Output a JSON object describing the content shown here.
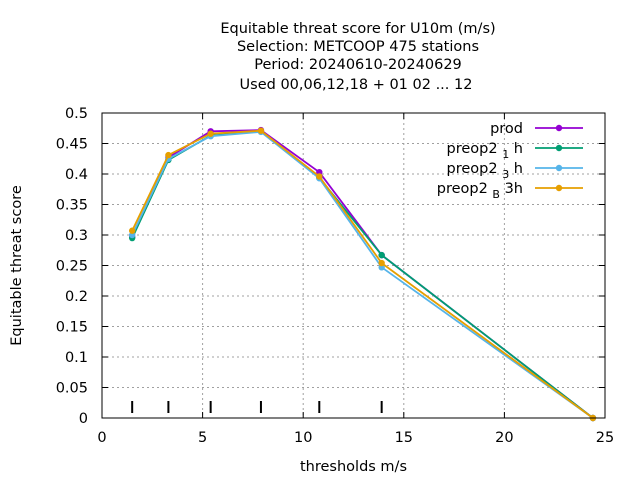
{
  "chart_data": {
    "type": "line",
    "title_lines": [
      "Equitable threat score  for U10m (m/s)",
      "Selection: METCOOP    475 stations",
      "Period: 20240610-20240629",
      "Used  00,06,12,18 + 01 02 ... 12"
    ],
    "xlabel": "thresholds m/s",
    "ylabel": "Equitable threat score",
    "xlim": [
      0,
      25
    ],
    "ylim": [
      0,
      0.5
    ],
    "xticks": [
      0,
      5,
      10,
      15,
      20,
      25
    ],
    "xtick_labels": [
      "0",
      "5",
      "10",
      "15",
      "20",
      "25"
    ],
    "yticks": [
      0,
      0.05,
      0.1,
      0.15,
      0.2,
      0.25,
      0.3,
      0.35,
      0.4,
      0.45,
      0.5
    ],
    "ytick_labels": [
      "0",
      "0.05",
      "0.1",
      "0.15",
      "0.2",
      "0.25",
      "0.3",
      "0.35",
      "0.4",
      "0.45",
      "0.5"
    ],
    "grid": true,
    "legend_position": "top-right",
    "threshold_markers": [
      1.5,
      3.3,
      5.4,
      7.9,
      10.8,
      13.9
    ],
    "x": [
      1.5,
      3.3,
      5.4,
      7.9,
      10.8,
      13.9,
      24.4
    ],
    "series": [
      {
        "name": "prod",
        "name_main": "prod",
        "name_sub": "",
        "name_rest": "",
        "color": "#9400d3",
        "values": [
          0.297,
          0.427,
          0.47,
          0.472,
          0.403,
          0.267,
          0.0
        ]
      },
      {
        "name": "preop2 1 h",
        "name_main": "preop2 ",
        "name_sub": "1",
        "name_rest": " h",
        "color": "#009e73",
        "values": [
          0.295,
          0.423,
          0.463,
          0.47,
          0.394,
          0.267,
          0.0
        ]
      },
      {
        "name": "preop2 3 h",
        "name_main": "preop2 ",
        "name_sub": "3",
        "name_rest": " h",
        "color": "#56b4e9",
        "values": [
          0.3,
          0.425,
          0.462,
          0.469,
          0.393,
          0.247,
          0.0
        ]
      },
      {
        "name": "preop2 B 3h",
        "name_main": "preop2 ",
        "name_sub": "B",
        "name_rest": " 3h",
        "color": "#e69f00",
        "values": [
          0.307,
          0.431,
          0.466,
          0.471,
          0.396,
          0.254,
          0.0
        ]
      }
    ]
  }
}
